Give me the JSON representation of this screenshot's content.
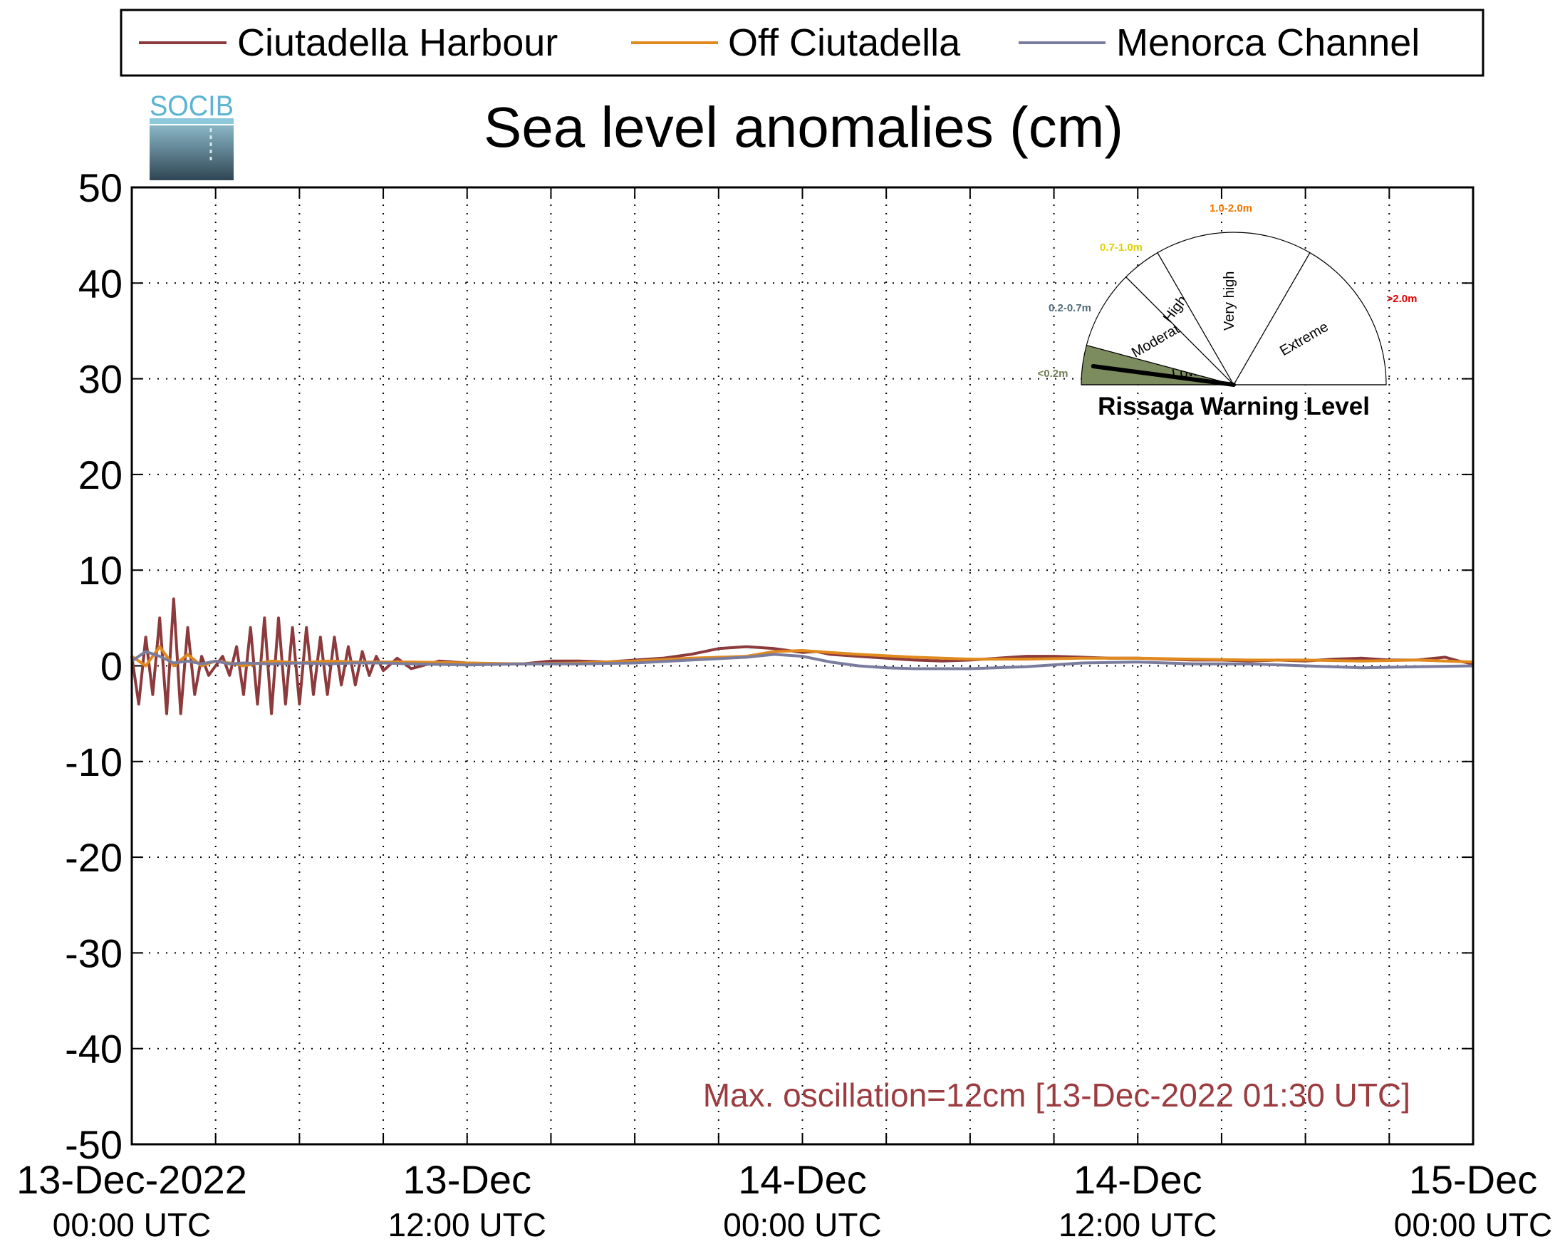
{
  "logo": {
    "text": "SOCIB"
  },
  "colors": {
    "ciutadella_harbour": "#8c3a3c",
    "off_ciutadella": "#e08a1e",
    "menorca_channel": "#7a7c9e",
    "annotation": "#9c3c40",
    "gauge_low": "#7d8c5f",
    "label_low": "#6e7d55",
    "label_moderate": "#4f6b78",
    "label_high": "#e0d000",
    "label_veryhigh": "#f07800",
    "label_extreme": "#e00000"
  },
  "chart_data": {
    "type": "line",
    "title": "Sea level anomalies (cm)",
    "xlabel": "",
    "ylabel": "",
    "x_unit": "hours since 13-Dec-2022 00:00 UTC",
    "xlim": [
      0,
      48
    ],
    "ylim": [
      -50,
      50
    ],
    "yticks": [
      50,
      40,
      30,
      20,
      10,
      0,
      -10,
      -20,
      -30,
      -40,
      -50
    ],
    "xtick_labels": [
      {
        "x": 0,
        "line1": "13-Dec-2022",
        "line2": "00:00 UTC"
      },
      {
        "x": 12,
        "line1": "13-Dec",
        "line2": "12:00 UTC"
      },
      {
        "x": 24,
        "line1": "14-Dec",
        "line2": "00:00 UTC"
      },
      {
        "x": 36,
        "line1": "14-Dec",
        "line2": "12:00 UTC"
      },
      {
        "x": 48,
        "line1": "15-Dec",
        "line2": "00:00 UTC"
      }
    ],
    "grid": true,
    "legend_position": "top",
    "series": [
      {
        "name": "Ciutadella Harbour",
        "color": "#8c3a3c",
        "x": [
          0,
          0.25,
          0.5,
          0.75,
          1,
          1.25,
          1.5,
          1.75,
          2,
          2.25,
          2.5,
          2.75,
          3,
          3.25,
          3.5,
          3.75,
          4,
          4.25,
          4.5,
          4.75,
          5,
          5.25,
          5.5,
          5.75,
          6,
          6.25,
          6.5,
          6.75,
          7,
          7.25,
          7.5,
          7.75,
          8,
          8.25,
          8.5,
          8.75,
          9,
          9.5,
          10,
          11,
          12,
          13,
          14,
          15,
          16,
          17,
          18,
          19,
          20,
          21,
          22,
          23,
          23.5,
          24,
          24.5,
          25,
          26,
          27,
          28,
          29,
          30,
          31,
          32,
          33,
          34,
          35,
          36,
          37,
          38,
          39,
          40,
          41,
          42,
          43,
          44,
          45,
          46,
          47,
          47.5,
          48
        ],
        "y": [
          1,
          -4,
          3,
          -3,
          5,
          -5,
          7,
          -5,
          4,
          -3,
          1,
          -1,
          0,
          1,
          -1,
          2,
          -3,
          4,
          -4,
          5,
          -5,
          5,
          -4,
          4,
          -4,
          4,
          -3,
          3,
          -3,
          3,
          -2,
          2,
          -2,
          1.5,
          -1,
          1,
          -0.5,
          0.8,
          -0.3,
          0.5,
          0.3,
          0.2,
          0.2,
          0.5,
          0.5,
          0.4,
          0.6,
          0.8,
          1.2,
          1.8,
          2,
          1.8,
          1.6,
          1.4,
          1.5,
          1.2,
          1,
          0.8,
          0.6,
          0.5,
          0.6,
          0.8,
          1,
          1,
          0.9,
          0.8,
          0.8,
          0.7,
          0.6,
          0.6,
          0.5,
          0.6,
          0.5,
          0.7,
          0.8,
          0.6,
          0.6,
          0.9,
          0.5,
          0.2
        ]
      },
      {
        "name": "Off Ciutadella",
        "color": "#e08a1e",
        "x": [
          0,
          0.5,
          1,
          1.5,
          2,
          2.5,
          3,
          3.5,
          4,
          5,
          6,
          7,
          8,
          9,
          10,
          12,
          14,
          16,
          18,
          20,
          22,
          23,
          24,
          25,
          26,
          28,
          30,
          32,
          34,
          36,
          38,
          40,
          42,
          44,
          46,
          48
        ],
        "y": [
          1,
          0,
          2,
          0,
          1.2,
          0,
          0.5,
          0.3,
          0,
          0.5,
          0.3,
          0.5,
          0.4,
          0.4,
          0.4,
          0.3,
          0.2,
          0.3,
          0.5,
          0.8,
          1,
          1.5,
          1.6,
          1.4,
          1.2,
          0.9,
          0.7,
          0.7,
          0.8,
          0.8,
          0.7,
          0.6,
          0.6,
          0.5,
          0.6,
          0.4
        ]
      },
      {
        "name": "Menorca Channel",
        "color": "#7a7c9e",
        "x": [
          0,
          0.5,
          1,
          1.5,
          2,
          2.5,
          3,
          3.5,
          4,
          5,
          6,
          7,
          8,
          9,
          10,
          12,
          14,
          16,
          18,
          20,
          22,
          23,
          24,
          25,
          26,
          27,
          28,
          30,
          32,
          34,
          36,
          38,
          40,
          42,
          44,
          46,
          48
        ],
        "y": [
          0.5,
          1.5,
          1,
          0.3,
          0.5,
          0.2,
          0.5,
          0.2,
          0.3,
          0.2,
          0.3,
          0.2,
          0.3,
          0.3,
          0.2,
          0.1,
          0.2,
          0.2,
          0.3,
          0.6,
          0.9,
          1.2,
          1,
          0.4,
          0,
          -0.2,
          -0.3,
          -0.3,
          -0.1,
          0.3,
          0.4,
          0.2,
          0.2,
          0,
          -0.2,
          -0.1,
          0
        ]
      }
    ],
    "annotation": "Max. oscillation=12cm [13-Dec-2022 01:30 UTC]"
  },
  "gauge": {
    "title": "Rissaga Warning Level",
    "current_level": "Low",
    "sectors": [
      {
        "name": "Low",
        "range": "<0.2m",
        "active": true
      },
      {
        "name": "Moderate",
        "range": "0.2-0.7m",
        "active": false
      },
      {
        "name": "High",
        "range": "0.7-1.0m",
        "active": false
      },
      {
        "name": "Very high",
        "range": "1.0-2.0m",
        "active": false
      },
      {
        "name": "Extreme",
        "range": ">2.0m",
        "active": false
      }
    ]
  }
}
